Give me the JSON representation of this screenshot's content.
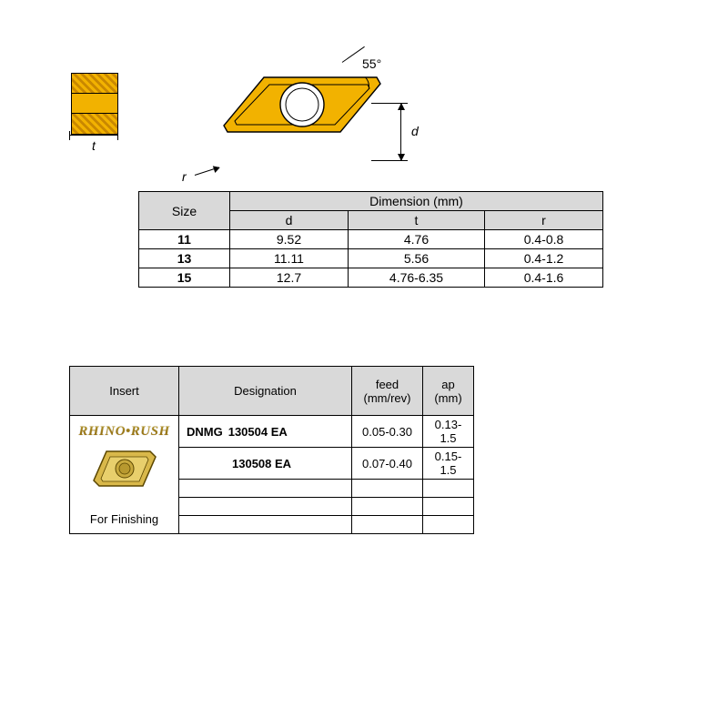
{
  "colors": {
    "insert_fill": "#f2b200",
    "insert_stroke": "#000000",
    "header_bg": "#d9d9d9",
    "brand_top": "#f6d24a",
    "brand_bottom": "#b07a00",
    "hatch_a": "#f2b200",
    "hatch_b": "#c98800"
  },
  "diagram": {
    "angle_label": "55°",
    "d_label": "d",
    "t_label": "t",
    "r_label": "r"
  },
  "size_table": {
    "size_header": "Size",
    "dim_header": "Dimension (mm)",
    "cols": {
      "d": "d",
      "t": "t",
      "r": "r"
    },
    "rows": [
      {
        "size": "11",
        "d": "9.52",
        "t": "4.76",
        "r": "0.4-0.8"
      },
      {
        "size": "13",
        "d": "11.11",
        "t": "5.56",
        "r": "0.4-1.2"
      },
      {
        "size": "15",
        "d": "12.7",
        "t": "4.76-6.35",
        "r": "0.4-1.6"
      }
    ]
  },
  "insert_table": {
    "headers": {
      "insert": "Insert",
      "designation": "Designation",
      "feed": "feed\n(mm/rev)",
      "ap": "ap\n(mm)"
    },
    "brand": "RHINO•RUSH",
    "caption": "For Finishing",
    "prefix": "DNMG",
    "rows": [
      {
        "code": "130504 EA",
        "feed": "0.05-0.30",
        "ap": "0.13-1.5"
      },
      {
        "code": "130508 EA",
        "feed": "0.07-0.40",
        "ap": "0.15-1.5"
      }
    ],
    "blank_rows": 3
  }
}
